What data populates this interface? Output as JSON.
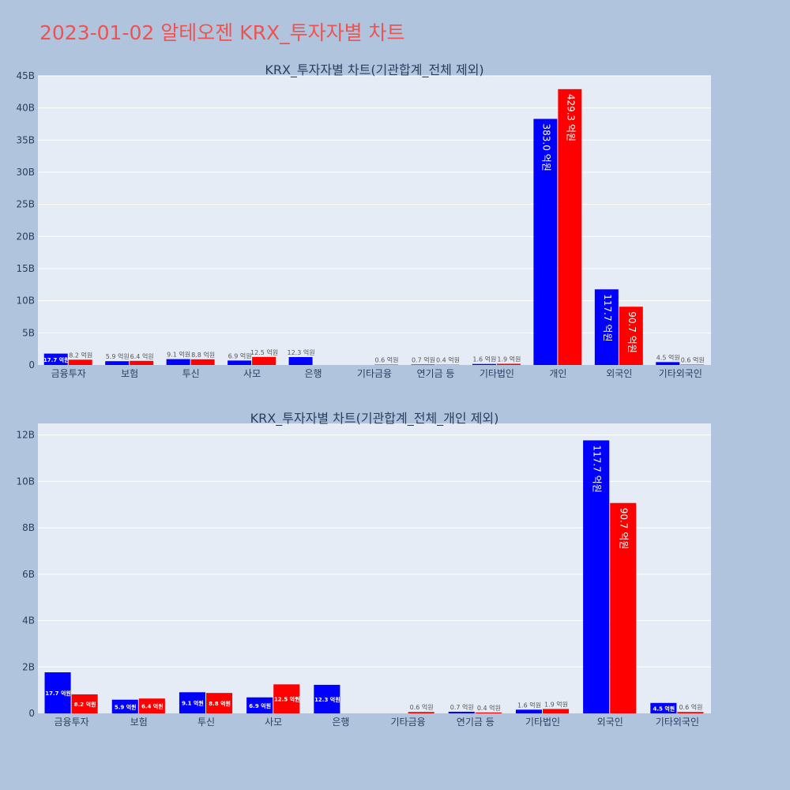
{
  "page": {
    "title": "2023-01-02 알테오젠 KRX_투자자별 차트"
  },
  "chart_data": [
    {
      "type": "bar",
      "title": "KRX_투자자별 차트(기관합계_전체 제외)",
      "categories": [
        "금융투자",
        "보험",
        "투신",
        "사모",
        "은행",
        "기타금융",
        "연기금 등",
        "기타법인",
        "개인",
        "외국인",
        "기타외국인"
      ],
      "series": [
        {
          "color": "#0000ff",
          "values": [
            1.77,
            0.59,
            0.91,
            0.69,
            1.23,
            0,
            0.07,
            0.16,
            38.3,
            11.77,
            0.45
          ],
          "labels": [
            "17.7 억원",
            "5.9 억원",
            "9.1 억원",
            "6.9 억원",
            "12.3 억원",
            "",
            "0.7 억원",
            "1.6 억원",
            "383.0 억원",
            "117.7 억원",
            "4.5 억원"
          ]
        },
        {
          "color": "#ff0000",
          "values": [
            0.82,
            0.64,
            0.88,
            1.25,
            0,
            0.06,
            0.04,
            0.19,
            42.93,
            9.07,
            0.06
          ],
          "labels": [
            "8.2 억원",
            "6.4 억원",
            "8.8 억원",
            "12.5 억원",
            "",
            "0.6 억원",
            "0.4 억원",
            "1.9 억원",
            "429.3 억원",
            "90.7 억원",
            "0.6 억원"
          ]
        }
      ],
      "ylim": [
        0,
        45
      ],
      "yticks": [
        0,
        5,
        10,
        15,
        20,
        25,
        30,
        35,
        40,
        45
      ],
      "ytick_labels": [
        "0",
        "5B",
        "10B",
        "15B",
        "20B",
        "25B",
        "30B",
        "35B",
        "40B",
        "45B"
      ],
      "grid": true
    },
    {
      "type": "bar",
      "title": "KRX_투자자별 차트(기관합계_전체_개인 제외)",
      "categories": [
        "금융투자",
        "보험",
        "투신",
        "사모",
        "은행",
        "기타금융",
        "연기금 등",
        "기타법인",
        "외국인",
        "기타외국인"
      ],
      "series": [
        {
          "color": "#0000ff",
          "values": [
            1.77,
            0.59,
            0.91,
            0.69,
            1.23,
            0,
            0.07,
            0.16,
            11.77,
            0.45
          ],
          "labels": [
            "17.7 억원",
            "5.9 억원",
            "9.1 억원",
            "6.9 억원",
            "12.3 억원",
            "",
            "0.7 억원",
            "1.6 억원",
            "117.7 억원",
            "4.5 억원"
          ]
        },
        {
          "color": "#ff0000",
          "values": [
            0.82,
            0.64,
            0.88,
            1.25,
            0,
            0.06,
            0.04,
            0.19,
            9.07,
            0.06
          ],
          "labels": [
            "8.2 억원",
            "6.4 억원",
            "8.8 억원",
            "12.5 억원",
            "",
            "0.6 억원",
            "0.4 억원",
            "1.9 억원",
            "90.7 억원",
            "0.6 억원"
          ]
        }
      ],
      "ylim": [
        0,
        12.5
      ],
      "yticks": [
        0,
        2,
        4,
        6,
        8,
        10,
        12
      ],
      "ytick_labels": [
        "0",
        "2B",
        "4B",
        "6B",
        "8B",
        "10B",
        "12B"
      ],
      "grid": true
    }
  ]
}
